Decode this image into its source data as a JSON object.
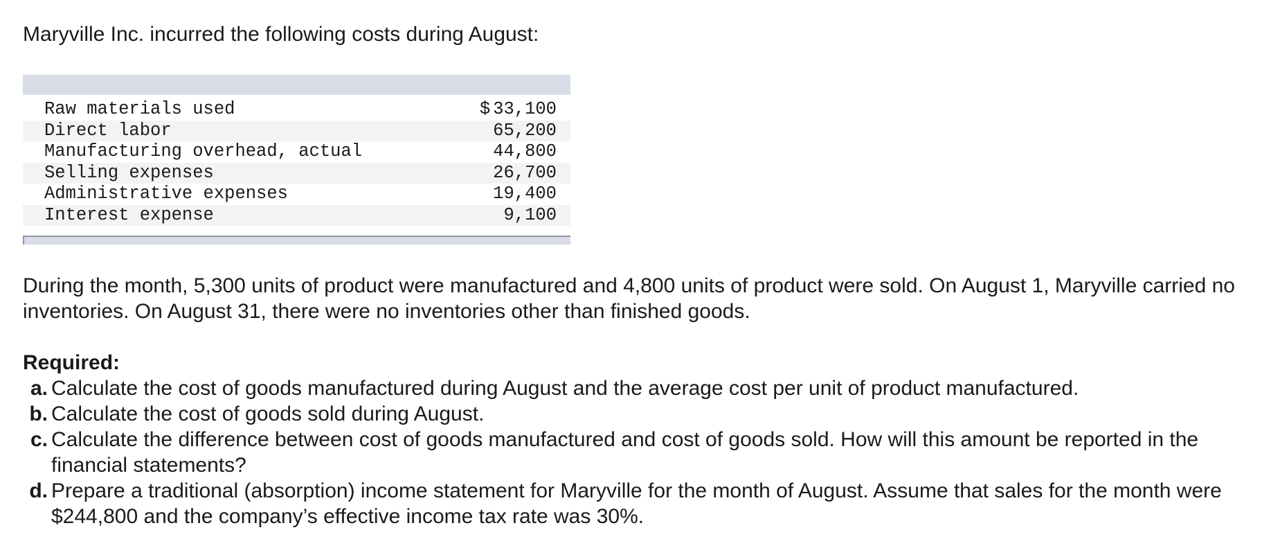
{
  "intro": "Maryville Inc. incurred the following costs during August:",
  "costs": [
    {
      "label": "Raw materials used",
      "currency": "$",
      "amount": "33,100"
    },
    {
      "label": "Direct labor",
      "currency": "",
      "amount": "65,200"
    },
    {
      "label": "Manufacturing overhead, actual",
      "currency": "",
      "amount": "44,800"
    },
    {
      "label": "Selling expenses",
      "currency": "",
      "amount": "26,700"
    },
    {
      "label": "Administrative expenses",
      "currency": "",
      "amount": "19,400"
    },
    {
      "label": "Interest expense",
      "currency": "",
      "amount": "9,100"
    }
  ],
  "paragraph": "During the month, 5,300 units of product were manufactured and 4,800 units of product were sold. On August 1, Maryville carried no inventories. On August 31, there were no inventories other than finished goods.",
  "required": {
    "heading": "Required:",
    "items": [
      {
        "letter": "a.",
        "text": "Calculate the cost of goods manufactured during August and the average cost per unit of product manufactured."
      },
      {
        "letter": "b.",
        "text": "Calculate the cost of goods sold during August."
      },
      {
        "letter": "c.",
        "text": "Calculate the difference between cost of goods manufactured and cost of goods sold. How will this amount be reported in the financial statements?"
      },
      {
        "letter": "d.",
        "text": "Prepare a traditional (absorption) income statement for Maryville for the month of August. Assume that sales for the month were $244,800 and the company’s effective income tax rate was 30%."
      }
    ]
  }
}
